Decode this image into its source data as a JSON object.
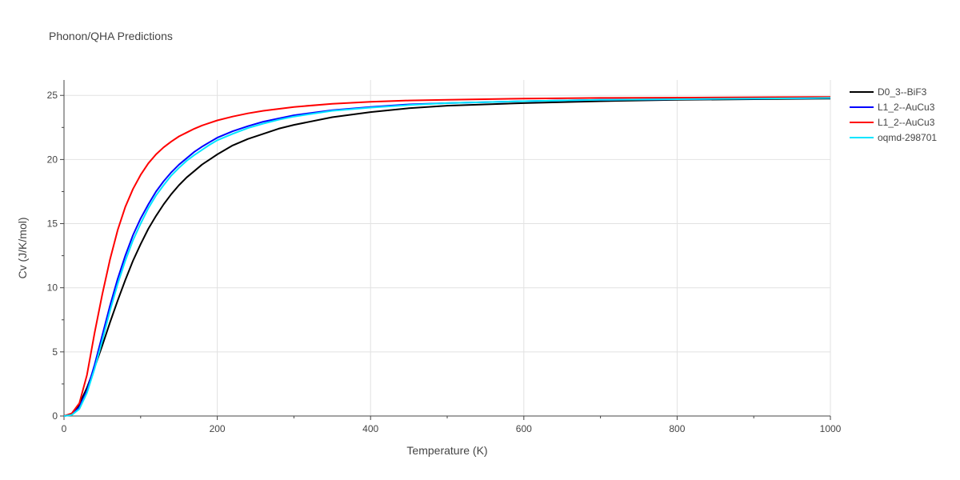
{
  "chart_data": {
    "type": "line",
    "title": "Phonon/QHA Predictions",
    "xlabel": "Temperature (K)",
    "ylabel": "Cv (J/K/mol)",
    "xlim": [
      0,
      1000
    ],
    "ylim": [
      0,
      26.2
    ],
    "xticks": [
      0,
      200,
      400,
      600,
      800,
      1000
    ],
    "yticks": [
      0,
      5,
      10,
      15,
      20,
      25
    ],
    "xtick_labels": [
      "0",
      "200",
      "400",
      "600",
      "800",
      "1000"
    ],
    "ytick_labels": [
      "0",
      "5",
      "10",
      "15",
      "20",
      "25"
    ],
    "grid": true,
    "legend_position": "top-right",
    "series": [
      {
        "name": "D0_3--BiF3",
        "color": "#000000",
        "x": [
          0,
          10,
          20,
          30,
          40,
          50,
          60,
          70,
          80,
          90,
          100,
          110,
          120,
          130,
          140,
          150,
          160,
          170,
          180,
          190,
          200,
          220,
          240,
          260,
          280,
          300,
          350,
          400,
          450,
          500,
          600,
          700,
          800,
          900,
          1000
        ],
        "y": [
          0,
          0.15,
          0.9,
          2.2,
          3.8,
          5.5,
          7.3,
          9.0,
          10.6,
          12.1,
          13.4,
          14.6,
          15.6,
          16.5,
          17.3,
          18.0,
          18.6,
          19.1,
          19.6,
          20.0,
          20.4,
          21.1,
          21.6,
          22.0,
          22.4,
          22.7,
          23.3,
          23.7,
          24.0,
          24.2,
          24.4,
          24.55,
          24.65,
          24.7,
          24.75
        ]
      },
      {
        "name": "L1_2--AuCu3",
        "color": "#0000ff",
        "x": [
          0,
          10,
          20,
          30,
          40,
          50,
          60,
          70,
          80,
          90,
          100,
          110,
          120,
          130,
          140,
          150,
          160,
          170,
          180,
          190,
          200,
          220,
          240,
          260,
          280,
          300,
          350,
          400,
          450,
          500,
          600,
          700,
          800,
          900,
          1000
        ],
        "y": [
          0,
          0.1,
          0.7,
          2.0,
          4.0,
          6.3,
          8.6,
          10.7,
          12.5,
          14.1,
          15.4,
          16.5,
          17.5,
          18.3,
          19.0,
          19.6,
          20.1,
          20.6,
          21.0,
          21.35,
          21.7,
          22.2,
          22.6,
          22.95,
          23.2,
          23.45,
          23.85,
          24.1,
          24.3,
          24.4,
          24.55,
          24.65,
          24.7,
          24.75,
          24.8
        ]
      },
      {
        "name": "L1_2--AuCu3",
        "color": "#ff0000",
        "x": [
          0,
          10,
          20,
          30,
          40,
          50,
          60,
          70,
          80,
          90,
          100,
          110,
          120,
          130,
          140,
          150,
          160,
          170,
          180,
          190,
          200,
          220,
          240,
          260,
          280,
          300,
          350,
          400,
          450,
          500,
          600,
          700,
          800,
          900,
          1000
        ],
        "y": [
          0,
          0.2,
          1.0,
          3.2,
          6.5,
          9.5,
          12.2,
          14.5,
          16.3,
          17.7,
          18.8,
          19.7,
          20.4,
          20.95,
          21.4,
          21.8,
          22.1,
          22.4,
          22.65,
          22.85,
          23.05,
          23.35,
          23.6,
          23.8,
          23.95,
          24.1,
          24.35,
          24.5,
          24.6,
          24.65,
          24.75,
          24.8,
          24.82,
          24.85,
          24.88
        ]
      },
      {
        "name": "oqmd-298701",
        "color": "#00e5ff",
        "x": [
          0,
          10,
          20,
          30,
          40,
          50,
          60,
          70,
          80,
          90,
          100,
          110,
          120,
          130,
          140,
          150,
          160,
          170,
          180,
          190,
          200,
          220,
          240,
          260,
          280,
          300,
          350,
          400,
          450,
          500,
          600,
          700,
          800,
          900,
          1000
        ],
        "y": [
          0,
          0.08,
          0.55,
          1.8,
          3.7,
          5.9,
          8.2,
          10.3,
          12.1,
          13.7,
          15.0,
          16.2,
          17.2,
          18.0,
          18.75,
          19.35,
          19.9,
          20.35,
          20.75,
          21.15,
          21.5,
          22.0,
          22.45,
          22.8,
          23.1,
          23.35,
          23.8,
          24.05,
          24.25,
          24.4,
          24.55,
          24.65,
          24.7,
          24.75,
          24.8
        ]
      }
    ]
  }
}
